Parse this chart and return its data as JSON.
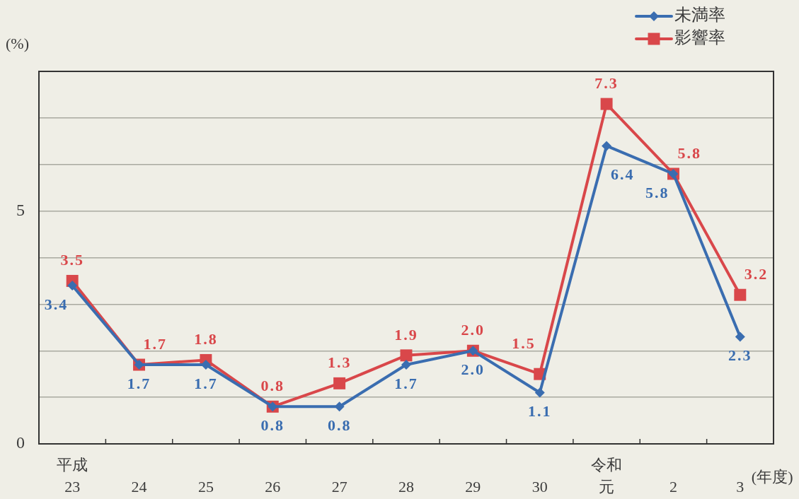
{
  "chart_data": {
    "type": "line",
    "categories": [
      "平成\n23",
      "24",
      "25",
      "26",
      "27",
      "28",
      "29",
      "30",
      "令和元",
      "2",
      "3"
    ],
    "xlabel": "(年度)",
    "ylabel": "(%)",
    "ylim": [
      0,
      8
    ],
    "yticks": [
      0,
      {
        "value": 1,
        "label": null
      },
      {
        "value": 2,
        "label": null
      },
      {
        "value": 3,
        "label": null
      },
      {
        "value": 4,
        "label": null
      },
      5,
      {
        "value": 6,
        "label": null
      },
      {
        "value": 7,
        "label": null
      },
      {
        "value": 8,
        "label": null
      }
    ],
    "grid": "y",
    "legend": "top right",
    "line_style": "solid",
    "series": [
      {
        "name": "未満率",
        "color": "#3a6db0",
        "marker": "diamond",
        "values": [
          3.4,
          1.7,
          1.7,
          0.8,
          0.8,
          1.7,
          2.0,
          1.1,
          6.4,
          5.8,
          2.3
        ],
        "value_labels": [
          "3.4",
          "1.7",
          "1.7",
          "0.8",
          "0.8",
          "1.7",
          "2.0",
          "1.1",
          "6.4",
          "5.8",
          "2.3"
        ]
      },
      {
        "name": "影響率",
        "color": "#d9474a",
        "marker": "square",
        "values": [
          3.5,
          1.7,
          1.8,
          0.8,
          1.3,
          1.9,
          2.0,
          1.5,
          7.3,
          5.8,
          3.2
        ],
        "value_labels": [
          "3.5",
          "1.7",
          "1.8",
          "0.8",
          "1.3",
          "1.9",
          "2.0",
          "1.5",
          "7.3",
          "5.8",
          "3.2"
        ]
      }
    ]
  }
}
